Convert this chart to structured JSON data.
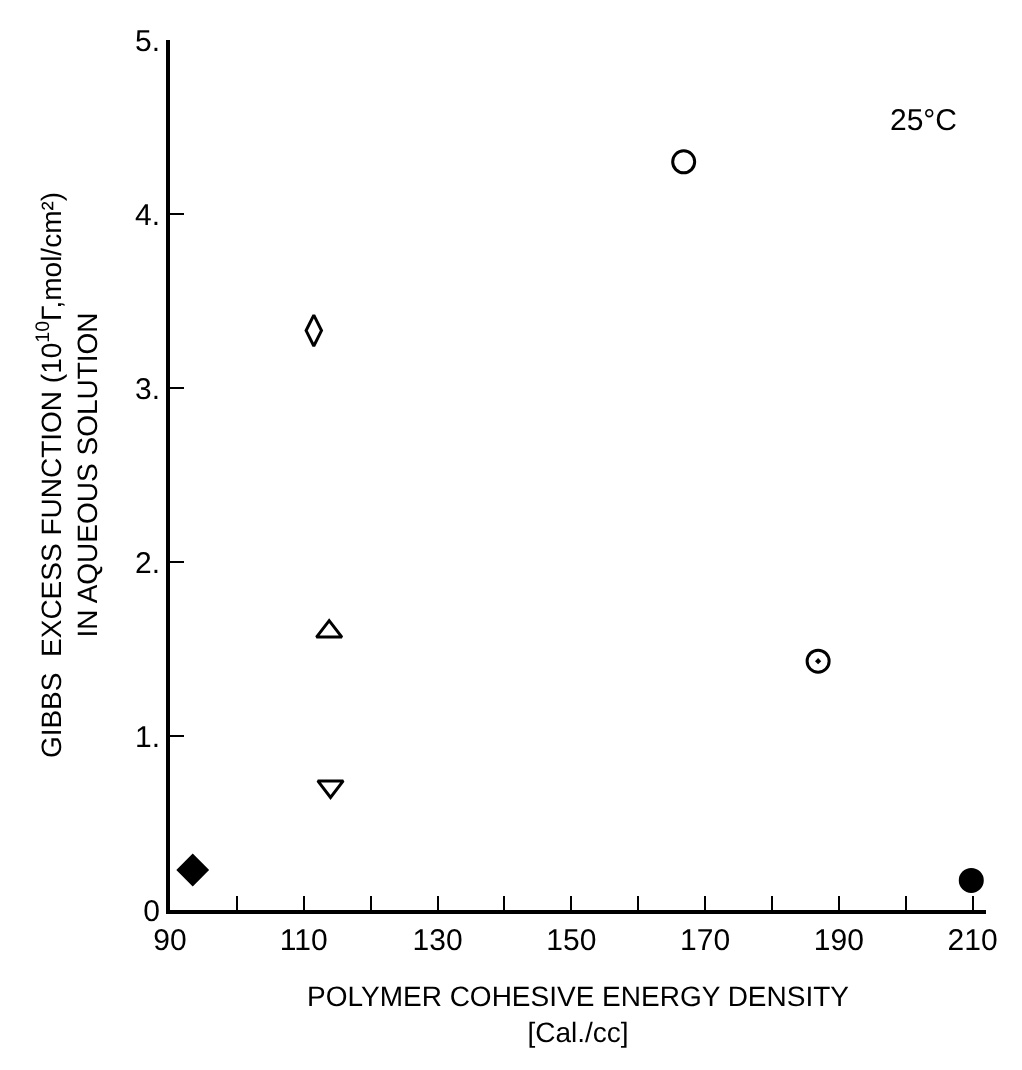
{
  "chart_data": {
    "type": "scatter",
    "xlabel": "POLYMER COHESIVE ENERGY DENSITY\n[Cal./cc]",
    "ylabel": "GIBBS  EXCESS FUNCTION (10$^{10}$Γ,mol/cm²)\nIN AQUEOUS SOLUTION",
    "annotations": [
      "25°C"
    ],
    "xlim": [
      90,
      212
    ],
    "xticks": [
      90,
      {
        "value": 100,
        "label": null
      },
      110,
      {
        "value": 120,
        "label": null
      },
      130,
      {
        "value": 140,
        "label": null
      },
      150,
      {
        "value": 160,
        "label": null
      },
      170,
      {
        "value": 180,
        "label": null
      },
      190,
      {
        "value": 200,
        "label": null
      },
      210
    ],
    "ylim": [
      0,
      5
    ],
    "yticks": [
      0,
      {
        "value": 1,
        "label": "1."
      },
      {
        "value": 2,
        "label": "2."
      },
      {
        "value": 3,
        "label": "3."
      },
      {
        "value": 4,
        "label": "4."
      },
      {
        "value": 5,
        "label": "5."
      }
    ],
    "series": [
      {
        "color": "#000000",
        "marker": "diamond",
        "x": [
          93.4
        ],
        "values": [
          0.23
        ]
      },
      {
        "color": "#000000",
        "marker": "diamond-tall-open",
        "x": [
          111.5
        ],
        "values": [
          3.33
        ]
      },
      {
        "color": "#000000",
        "marker": "triangle-up-open",
        "x": [
          113.8
        ],
        "values": [
          1.6
        ]
      },
      {
        "color": "#000000",
        "marker": "triangle-down-open",
        "x": [
          114
        ],
        "values": [
          0.71
        ]
      },
      {
        "color": "#000000",
        "marker": "circle-open",
        "x": [
          166.8
        ],
        "values": [
          4.3
        ]
      },
      {
        "color": "#000000",
        "marker": "circle-open-dot",
        "x": [
          186.9
        ],
        "values": [
          1.43
        ]
      },
      {
        "color": "#000000",
        "marker": "circle",
        "x": [
          209.8
        ],
        "values": [
          0.17
        ]
      }
    ]
  }
}
